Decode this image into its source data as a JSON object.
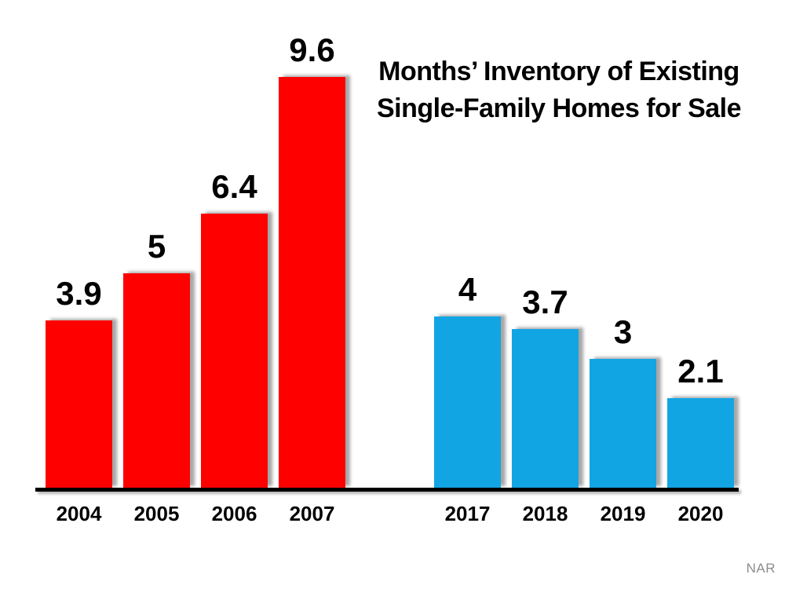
{
  "chart_data": {
    "type": "bar",
    "title": "Months’ Inventory of Existing Single-Family Homes for Sale",
    "title_lines": [
      "Months’ Inventory of Existing",
      "Single-Family Homes for Sale"
    ],
    "series": [
      {
        "name": "red-group",
        "categories": [
          "2004",
          "2005",
          "2006",
          "2007"
        ],
        "values": [
          3.9,
          5,
          6.4,
          9.6
        ],
        "color": "#ff0000"
      },
      {
        "name": "blue-group",
        "categories": [
          "2017",
          "2018",
          "2019",
          "2020"
        ],
        "values": [
          4,
          3.7,
          3,
          2.1
        ],
        "color": "#12a5e4"
      }
    ],
    "value_labels_shown": true,
    "y_axis_visible": false,
    "x_axis_line_color": "#000000",
    "legend_position": "none",
    "ylim": [
      0,
      10
    ],
    "source": "NAR"
  },
  "colors": {
    "background": "#ffffff",
    "text": "#000000",
    "source_text": "#8c8c8c"
  }
}
